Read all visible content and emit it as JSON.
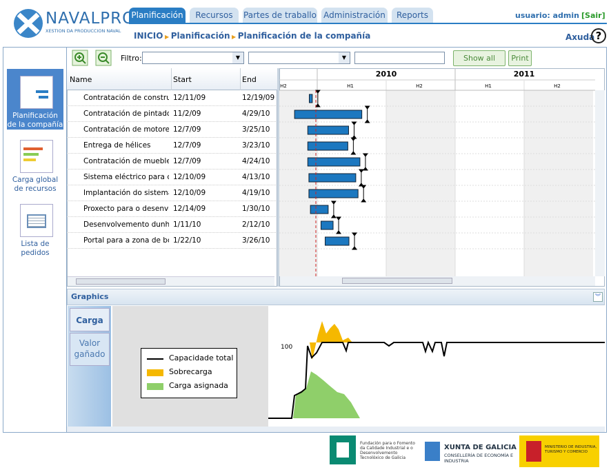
{
  "header": {
    "logo": "NAVALPRO",
    "logo_sub": "XESTION DA PRODUCCION NAVAL",
    "tabs": [
      "Planificación",
      "Recursos",
      "Partes de traballo",
      "Administración",
      "Reports"
    ],
    "user": "usuario: admin",
    "logout": "[Sair]",
    "breadcrumb": [
      "INICIO",
      "Planificación",
      "Planificación de la compañía"
    ],
    "help": "Axuda",
    "help_icon": "?"
  },
  "sidebar": {
    "items": [
      "Planificación de la compañía",
      "Carga global de recursos",
      "Lista de pedidos"
    ]
  },
  "toolbar": {
    "filter_label": "Filtro:",
    "buttons": [
      "Show all labels",
      "Print"
    ]
  },
  "table": {
    "columns": [
      "Name",
      "Start",
      "End"
    ],
    "rows": [
      [
        "Contratación de construcci",
        "12/11/09",
        "12/19/09"
      ],
      [
        "Contratación de pintado d",
        "11/2/09",
        "4/29/10"
      ],
      [
        "Contratación de motores",
        "12/7/09",
        "3/25/10"
      ],
      [
        "Entrega de hélices",
        "12/7/09",
        "3/23/10"
      ],
      [
        "Contratación de muebles",
        "12/7/09",
        "4/24/10"
      ],
      [
        "Sistema eléctrico para o",
        "12/10/09",
        "4/13/10"
      ],
      [
        "Implantación do sistema h",
        "12/10/09",
        "4/19/10"
      ],
      [
        "Proxecto para o desenvol",
        "12/14/09",
        "1/30/10"
      ],
      [
        "Desenvolvemento dunha ;",
        "1/11/10",
        "2/12/10"
      ],
      [
        "Portal para a zona de boc",
        "1/22/10",
        "3/26/10"
      ]
    ]
  },
  "gantt": {
    "years": [
      "2010",
      "2011"
    ],
    "halves": [
      "H2",
      "H1",
      "H2",
      "H1",
      "H2"
    ]
  },
  "graphics": {
    "title": "Graphics",
    "tabs": [
      "Carga",
      "Valor gañado"
    ],
    "legend": [
      "Capacidade total",
      "Sobrecarga",
      "Carga asignada"
    ],
    "y_label": "100"
  },
  "footer": {
    "fundacion": "Fundación para o Fomento da Calidade Industrial e o Desenvolvemento Tecnolóxico de Galicia",
    "xunta": "XUNTA DE GALICIA",
    "xunta_sub": "CONSELLERÍA DE ECONOMÍA E INDUSTRIA",
    "ministerio": "MINISTERIO DE INDUSTRIA, TURISMO Y COMERCIO"
  }
}
